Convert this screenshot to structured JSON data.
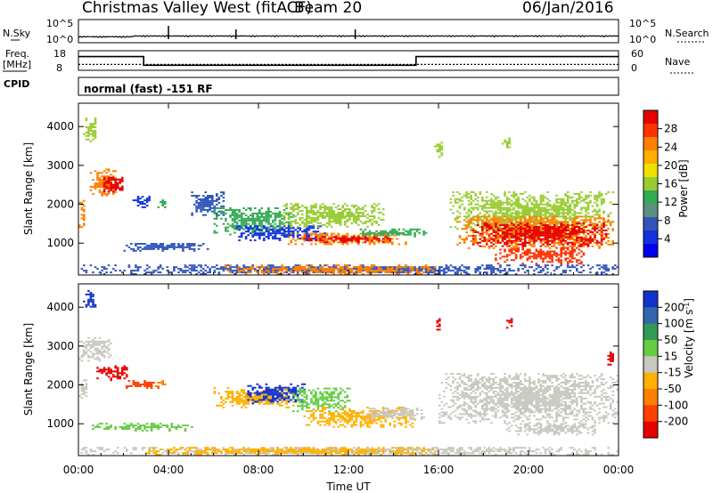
{
  "header": {
    "station": "Christmas Valley West (fitACF)",
    "beam": "Beam 20",
    "date": "06/Jan/2016"
  },
  "status_panels": {
    "nsky_label": "N.Sky",
    "nsky_ticks": [
      "10^5",
      "10^0"
    ],
    "nsearch_label": "N.Search",
    "nsearch_ticks": [
      "10^5",
      "10^0"
    ],
    "freq_label": "Freq.",
    "freq_unit": "[MHz]",
    "freq_ticks": [
      "18",
      "8"
    ],
    "nave_label": "Nave",
    "nave_ticks": [
      "60",
      "0"
    ],
    "cpid_label": "CPID",
    "cpid_text": "normal (fast) -151 RF",
    "frequency_series": [
      {
        "t": 0,
        "v": 15.0
      },
      {
        "t": 2.9,
        "v": 15.0
      },
      {
        "t": 2.9,
        "v": 10.6
      },
      {
        "t": 15.0,
        "v": 10.6
      },
      {
        "t": 15.0,
        "v": 15.0
      },
      {
        "t": 24,
        "v": 15.0
      }
    ],
    "nave_level": 18
  },
  "chart_data": [
    {
      "type": "heatmap",
      "title": "",
      "xlabel": "",
      "ylabel": "Slant Range [km]",
      "xlim": [
        0,
        24
      ],
      "ylim": [
        180,
        4600
      ],
      "x_ticks": [
        0,
        4,
        8,
        12,
        16,
        20,
        24
      ],
      "y_ticks": [
        1000,
        2000,
        3000,
        4000
      ],
      "y_tick_labels": [
        "1000",
        "2000",
        "3000",
        "4000"
      ],
      "colorbar": {
        "label": "Power [dB]",
        "ticks": [
          "28",
          "24",
          "20",
          "16",
          "12",
          "8",
          "4"
        ],
        "colors": [
          "#e60000",
          "#ff3300",
          "#ff7f00",
          "#ffae00",
          "#f0e000",
          "#99cc33",
          "#33aa55",
          "#5f8f7f",
          "#3355bb",
          "#1133dd",
          "#0000ee"
        ]
      },
      "regions": [
        {
          "t0": 0.0,
          "t1": 0.3,
          "r0": 1300,
          "r1": 2100,
          "color": "#ff7f00"
        },
        {
          "t0": 0.2,
          "t1": 0.8,
          "r0": 3600,
          "r1": 4200,
          "color": "#99cc33"
        },
        {
          "t0": 0.5,
          "t1": 1.8,
          "r0": 2200,
          "r1": 2900,
          "color": "#ff7f00"
        },
        {
          "t0": 1.0,
          "t1": 2.0,
          "r0": 2300,
          "r1": 2700,
          "color": "#e60000"
        },
        {
          "t0": 2.3,
          "t1": 3.2,
          "r0": 1900,
          "r1": 2200,
          "color": "#1133dd"
        },
        {
          "t0": 3.4,
          "t1": 3.9,
          "r0": 1900,
          "r1": 2100,
          "color": "#33aa55"
        },
        {
          "t0": 2.0,
          "t1": 5.8,
          "r0": 780,
          "r1": 1000,
          "color": "#3355bb"
        },
        {
          "t0": 5.0,
          "t1": 6.4,
          "r0": 1700,
          "r1": 2300,
          "color": "#3355bb"
        },
        {
          "t0": 6.0,
          "t1": 9.5,
          "r0": 1200,
          "r1": 1900,
          "color": "#33aa55"
        },
        {
          "t0": 7.0,
          "t1": 11.0,
          "r0": 1050,
          "r1": 1450,
          "color": "#1133dd"
        },
        {
          "t0": 9.0,
          "t1": 13.5,
          "r0": 1400,
          "r1": 2000,
          "color": "#99cc33"
        },
        {
          "t0": 9.3,
          "t1": 14.5,
          "r0": 950,
          "r1": 1250,
          "color": "#ff7f00"
        },
        {
          "t0": 10.0,
          "t1": 13.8,
          "r0": 1000,
          "r1": 1150,
          "color": "#e60000"
        },
        {
          "t0": 12.5,
          "t1": 15.4,
          "r0": 1150,
          "r1": 1350,
          "color": "#33aa55"
        },
        {
          "t0": 15.8,
          "t1": 16.2,
          "r0": 3200,
          "r1": 3600,
          "color": "#99cc33"
        },
        {
          "t0": 16.5,
          "t1": 23.8,
          "r0": 1300,
          "r1": 2300,
          "color": "#99cc33"
        },
        {
          "t0": 16.8,
          "t1": 23.8,
          "r0": 850,
          "r1": 1700,
          "color": "#ff7f00"
        },
        {
          "t0": 17.5,
          "t1": 23.5,
          "r0": 900,
          "r1": 1500,
          "color": "#e60000"
        },
        {
          "t0": 18.5,
          "t1": 22.5,
          "r0": 450,
          "r1": 900,
          "color": "#ff3300"
        },
        {
          "t0": 18.8,
          "t1": 19.2,
          "r0": 3400,
          "r1": 3700,
          "color": "#99cc33"
        },
        {
          "t0": 0.0,
          "t1": 24.0,
          "r0": 180,
          "r1": 420,
          "color": "#3355bb"
        },
        {
          "t0": 6.5,
          "t1": 16.0,
          "r0": 180,
          "r1": 420,
          "color": "#ff7f00"
        }
      ]
    },
    {
      "type": "heatmap",
      "title": "",
      "xlabel": "Time UT",
      "ylabel": "Slant Range [km]",
      "xlim": [
        0,
        24
      ],
      "ylim": [
        180,
        4600
      ],
      "x_ticks": [
        0,
        4,
        8,
        12,
        16,
        20,
        24
      ],
      "x_tick_labels": [
        "00:00",
        "04:00",
        "08:00",
        "12:00",
        "16:00",
        "20:00",
        "00:00"
      ],
      "y_ticks": [
        1000,
        2000,
        3000,
        4000
      ],
      "y_tick_labels": [
        "1000",
        "2000",
        "3000",
        "4000"
      ],
      "colorbar": {
        "label": "Velocity [m s^-1]",
        "ticks": [
          "200",
          "100",
          "50",
          "15",
          "-15",
          "-50",
          "-100",
          "-200"
        ],
        "colors": [
          "#1133cc",
          "#3366aa",
          "#339955",
          "#66cc44",
          "#c8c8c0",
          "#ffb000",
          "#ff8000",
          "#ff4000",
          "#e60000"
        ]
      },
      "regions": [
        {
          "t0": 0.2,
          "t1": 0.8,
          "r0": 3900,
          "r1": 4400,
          "color": "#1133cc"
        },
        {
          "t0": 0.0,
          "t1": 1.5,
          "r0": 2600,
          "r1": 3200,
          "color": "#c8c8c0"
        },
        {
          "t0": 0.0,
          "t1": 0.4,
          "r0": 1600,
          "r1": 2100,
          "color": "#c8c8c0"
        },
        {
          "t0": 0.8,
          "t1": 2.2,
          "r0": 2100,
          "r1": 2500,
          "color": "#e60000"
        },
        {
          "t0": 2.0,
          "t1": 3.8,
          "r0": 1900,
          "r1": 2100,
          "color": "#ff4000"
        },
        {
          "t0": 3.4,
          "t1": 3.9,
          "r0": 1900,
          "r1": 2100,
          "color": "#ff8000"
        },
        {
          "t0": 0.5,
          "t1": 5.0,
          "r0": 800,
          "r1": 1000,
          "color": "#66cc44"
        },
        {
          "t0": 6.0,
          "t1": 9.5,
          "r0": 1400,
          "r1": 1900,
          "color": "#ffb000"
        },
        {
          "t0": 7.5,
          "t1": 10.0,
          "r0": 1500,
          "r1": 2000,
          "color": "#1133cc"
        },
        {
          "t0": 9.5,
          "t1": 12.0,
          "r0": 1300,
          "r1": 1900,
          "color": "#66cc44"
        },
        {
          "t0": 10.0,
          "t1": 15.0,
          "r0": 900,
          "r1": 1400,
          "color": "#ffb000"
        },
        {
          "t0": 12.5,
          "t1": 15.4,
          "r0": 1100,
          "r1": 1400,
          "color": "#c8c8c0"
        },
        {
          "t0": 16.0,
          "t1": 24.0,
          "r0": 1000,
          "r1": 2300,
          "color": "#c8c8c0"
        },
        {
          "t0": 19.0,
          "t1": 23.0,
          "r0": 700,
          "r1": 1000,
          "color": "#c8c8c0"
        },
        {
          "t0": 15.9,
          "t1": 16.1,
          "r0": 3400,
          "r1": 3700,
          "color": "#e60000"
        },
        {
          "t0": 19.0,
          "t1": 19.3,
          "r0": 3450,
          "r1": 3700,
          "color": "#e60000"
        },
        {
          "t0": 23.5,
          "t1": 23.8,
          "r0": 2500,
          "r1": 2900,
          "color": "#e60000"
        },
        {
          "t0": 0.0,
          "t1": 24.0,
          "r0": 180,
          "r1": 380,
          "color": "#c8c8c0"
        },
        {
          "t0": 3.0,
          "t1": 16.0,
          "r0": 180,
          "r1": 380,
          "color": "#ffb000"
        }
      ]
    }
  ]
}
